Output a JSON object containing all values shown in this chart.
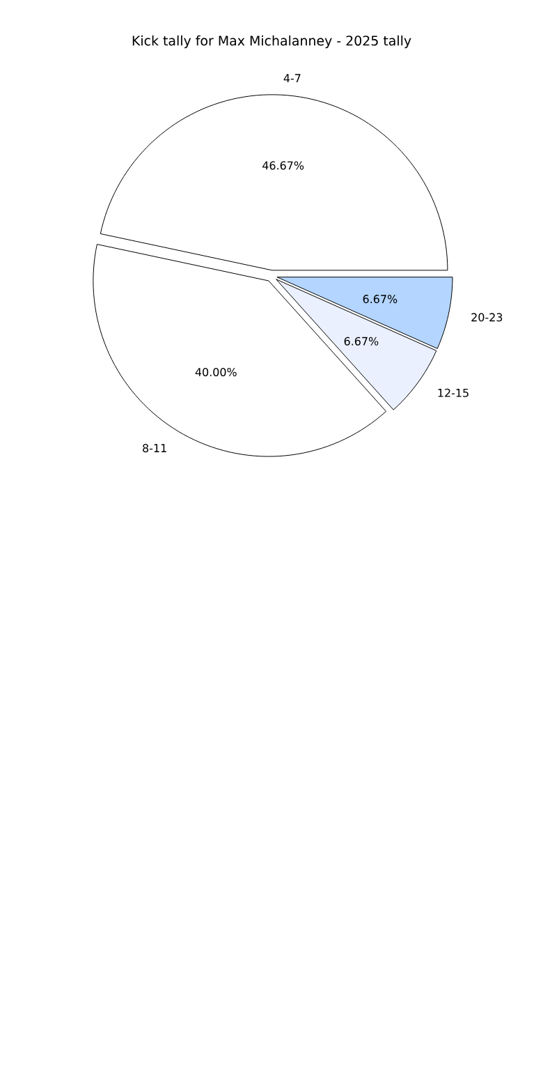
{
  "chart_data": {
    "type": "pie",
    "title": "Kick tally for Max Michalanney - 2025 tally",
    "categories": [
      "4-7",
      "8-11",
      "12-15",
      "20-23"
    ],
    "values": [
      46.67,
      40.0,
      6.67,
      6.67
    ],
    "value_labels": [
      "46.67%",
      "40.00%",
      "6.67%",
      "6.67%"
    ],
    "colors": [
      "#ffffff",
      "#ffffff",
      "#eaf0fe",
      "#b3d5ff"
    ]
  }
}
